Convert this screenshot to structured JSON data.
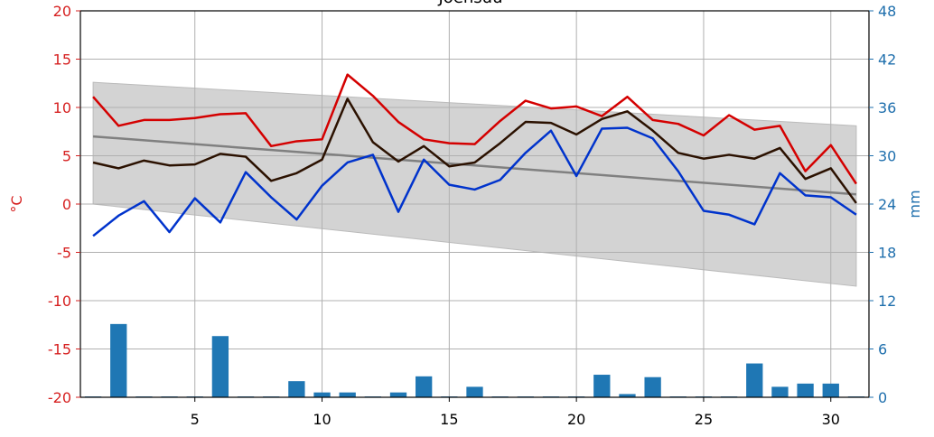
{
  "chart_data": {
    "type": "line",
    "title": "Joensuu",
    "ylabel": "°C",
    "y2label": "mm",
    "xlim": [
      0.5,
      31.5
    ],
    "xticks": [
      5,
      10,
      15,
      20,
      25,
      30
    ],
    "ylim": [
      -20,
      20
    ],
    "yticks": [
      -20,
      -15,
      -10,
      -5,
      0,
      5,
      10,
      15,
      20
    ],
    "y2lim": [
      0,
      48
    ],
    "y2ticks": [
      0,
      6,
      12,
      18,
      24,
      30,
      36,
      42,
      48
    ],
    "grid": true,
    "ycolor": "#d62020",
    "y2color": "#1f6fad",
    "x": [
      1,
      2,
      3,
      4,
      5,
      6,
      7,
      8,
      9,
      10,
      11,
      12,
      13,
      14,
      15,
      16,
      17,
      18,
      19,
      20,
      21,
      22,
      23,
      24,
      25,
      26,
      27,
      28,
      29,
      30,
      31
    ],
    "band": {
      "x": [
        1,
        31
      ],
      "upper": [
        12.6,
        8.1
      ],
      "lower": [
        0,
        -8.5
      ],
      "color": "#d3d3d3"
    },
    "trend": {
      "x": [
        1,
        31
      ],
      "values": [
        7.0,
        1.0
      ],
      "color": "#808080"
    },
    "bars": {
      "axis": "y2",
      "color": "#1f77b4",
      "values": [
        0.1,
        9.1,
        0.1,
        0.1,
        0.1,
        7.6,
        0.1,
        0.1,
        2.0,
        0.6,
        0.6,
        0.1,
        0.6,
        2.6,
        0.1,
        1.3,
        0.1,
        0.1,
        0.1,
        0.1,
        2.8,
        0.4,
        2.5,
        0.1,
        0.1,
        0.1,
        4.2,
        1.3,
        1.7,
        1.7,
        0.1
      ]
    },
    "series": [
      {
        "color": "#d40000",
        "values": [
          11.1,
          8.1,
          8.7,
          8.7,
          8.9,
          9.3,
          9.4,
          6.0,
          6.5,
          6.7,
          13.4,
          11.2,
          8.5,
          6.7,
          6.3,
          6.2,
          8.6,
          10.7,
          9.9,
          10.1,
          9.1,
          11.1,
          8.7,
          8.3,
          7.1,
          9.2,
          7.7,
          8.1,
          3.4,
          6.1,
          2.1
        ]
      },
      {
        "color": "#2b1100",
        "values": [
          4.3,
          3.7,
          4.5,
          4.0,
          4.1,
          5.2,
          4.9,
          2.4,
          3.2,
          4.6,
          10.9,
          6.4,
          4.4,
          6.0,
          3.9,
          4.3,
          6.3,
          8.5,
          8.4,
          7.2,
          8.8,
          9.6,
          7.6,
          5.3,
          4.7,
          5.1,
          4.7,
          5.8,
          2.6,
          3.7,
          0.1
        ]
      },
      {
        "color": "#0033cc",
        "values": [
          -3.3,
          -1.2,
          0.3,
          -2.9,
          0.6,
          -1.9,
          3.3,
          0.7,
          -1.6,
          1.9,
          4.3,
          5.1,
          -0.8,
          4.6,
          2.0,
          1.5,
          2.5,
          5.3,
          7.6,
          2.9,
          7.8,
          7.9,
          6.8,
          3.4,
          -0.7,
          -1.1,
          -2.1,
          3.2,
          0.9,
          0.7,
          -1.1
        ]
      }
    ]
  }
}
